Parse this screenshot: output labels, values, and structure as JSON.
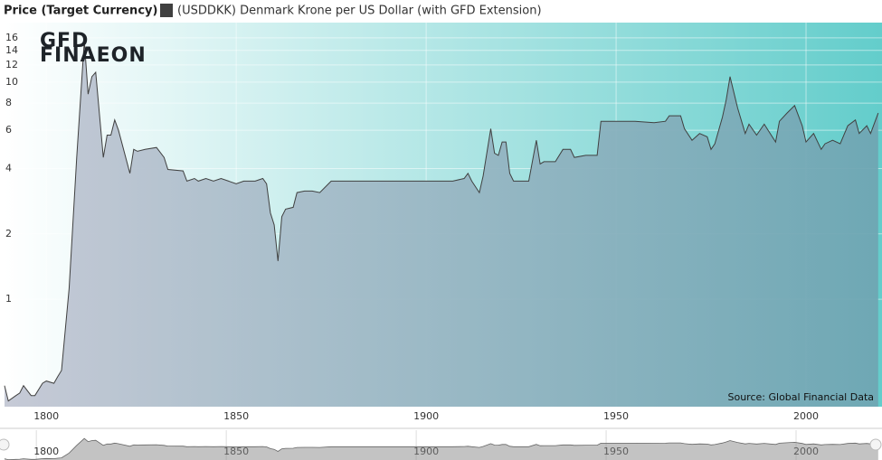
{
  "chart_data": {
    "type": "area",
    "title": "Price (Target Currency)",
    "source": "Source: Global Financial Data",
    "logo": [
      "GFD",
      "FINAEON"
    ],
    "log_y": true,
    "grid": true,
    "x": [
      1789,
      1790,
      1792,
      1793,
      1794,
      1796,
      1797,
      1799,
      1800,
      1802,
      1803,
      1804,
      1806,
      1808,
      1810,
      1811,
      1812,
      1813,
      1815,
      1816,
      1817,
      1818,
      1819,
      1822,
      1823,
      1824,
      1826,
      1829,
      1831,
      1832,
      1836,
      1837,
      1839,
      1840,
      1842,
      1844,
      1846,
      1848,
      1850,
      1852,
      1855,
      1857,
      1858,
      1859,
      1860,
      1861,
      1862,
      1863,
      1865,
      1866,
      1868,
      1870,
      1872,
      1875,
      1883,
      1890,
      1893,
      1898,
      1902,
      1907,
      1910,
      1911,
      1912,
      1914,
      1915,
      1917,
      1918,
      1919,
      1920,
      1921,
      1922,
      1923,
      1927,
      1929,
      1930,
      1931,
      1934,
      1936,
      1938,
      1939,
      1942,
      1945,
      1946,
      1955,
      1960,
      1963,
      1964,
      1967,
      1968,
      1970,
      1972,
      1974,
      1975,
      1976,
      1978,
      1979,
      1980,
      1982,
      1984,
      1985,
      1987,
      1989,
      1992,
      1993,
      1995,
      1997,
      1999,
      2000,
      2002,
      2004,
      2005,
      2007,
      2009,
      2011,
      2013,
      2014,
      2016,
      2017,
      2019
    ],
    "series": [
      {
        "name": "(USDDKK) Denmark Krone per US Dollar (with GFD Extension)",
        "color": "#404040",
        "values": [
          0.4,
          0.34,
          0.36,
          0.37,
          0.4,
          0.36,
          0.36,
          0.41,
          0.42,
          0.41,
          0.44,
          0.47,
          1.12,
          4.5,
          15.5,
          8.8,
          10.6,
          11.1,
          4.5,
          5.7,
          5.7,
          6.7,
          6.0,
          3.8,
          4.9,
          4.8,
          4.9,
          5.0,
          4.5,
          3.96,
          3.9,
          3.5,
          3.6,
          3.5,
          3.6,
          3.5,
          3.6,
          3.5,
          3.4,
          3.5,
          3.5,
          3.6,
          3.4,
          2.5,
          2.2,
          1.5,
          2.4,
          2.6,
          2.65,
          3.1,
          3.15,
          3.15,
          3.1,
          3.5,
          3.5,
          3.5,
          3.5,
          3.5,
          3.5,
          3.5,
          3.6,
          3.8,
          3.5,
          3.1,
          3.7,
          6.1,
          4.7,
          4.6,
          5.3,
          5.3,
          3.8,
          3.5,
          3.5,
          5.4,
          4.2,
          4.3,
          4.3,
          4.9,
          4.9,
          4.5,
          4.6,
          4.6,
          6.6,
          6.6,
          6.5,
          6.6,
          7.0,
          7.0,
          6.1,
          5.4,
          5.8,
          5.6,
          4.9,
          5.2,
          6.9,
          8.3,
          10.6,
          7.6,
          5.8,
          6.4,
          5.7,
          6.4,
          5.3,
          6.6,
          7.2,
          7.8,
          6.3,
          5.3,
          5.8,
          4.9,
          5.2,
          5.4,
          5.2,
          6.3,
          6.7,
          5.8,
          6.3,
          5.8,
          7.2
        ]
      }
    ],
    "xlim": [
      1789,
      2020
    ],
    "xticks": [
      1800,
      1850,
      1900,
      1950,
      2000
    ],
    "ylim": [
      0.32,
      18.8
    ],
    "yticks": [
      1,
      2,
      4,
      6,
      8,
      10,
      12,
      14,
      16
    ]
  }
}
